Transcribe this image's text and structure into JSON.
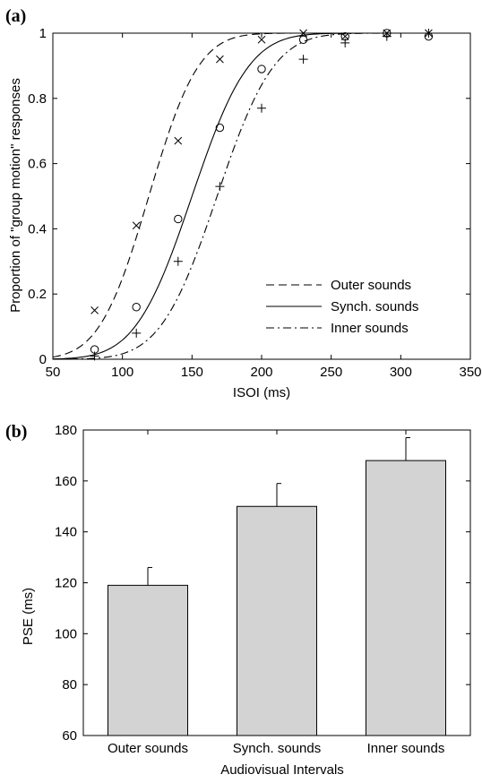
{
  "chart_data": [
    {
      "panel": "(a)",
      "type": "line",
      "xlabel": "ISOI (ms)",
      "ylabel": "Proportion of \"group motion\" responses",
      "xlim": [
        50,
        350
      ],
      "ylim": [
        0,
        1
      ],
      "xticks": [
        "50",
        "100",
        "150",
        "200",
        "250",
        "300",
        "350"
      ],
      "yticks": [
        "0",
        "0.2",
        "0.4",
        "0.6",
        "0.8",
        "1"
      ],
      "grid": false,
      "legend_position": "bottom-right",
      "series": [
        {
          "name": "Outer sounds",
          "line_style": "dashed",
          "marker": "x",
          "fit": {
            "mu": 119,
            "sigma": 28
          },
          "points": [
            [
              80,
              0.15
            ],
            [
              110,
              0.41
            ],
            [
              140,
              0.67
            ],
            [
              170,
              0.92
            ],
            [
              200,
              0.98
            ],
            [
              230,
              1.0
            ],
            [
              260,
              0.99
            ],
            [
              290,
              1.0
            ],
            [
              320,
              1.0
            ]
          ]
        },
        {
          "name": "Synch. sounds",
          "line_style": "solid",
          "marker": "o",
          "fit": {
            "mu": 150,
            "sigma": 32
          },
          "points": [
            [
              80,
              0.03
            ],
            [
              110,
              0.16
            ],
            [
              140,
              0.43
            ],
            [
              170,
              0.71
            ],
            [
              200,
              0.89
            ],
            [
              230,
              0.98
            ],
            [
              260,
              0.99
            ],
            [
              290,
              1.0
            ],
            [
              320,
              0.99
            ]
          ]
        },
        {
          "name": "Inner sounds",
          "line_style": "dashdot",
          "marker": "+",
          "fit": {
            "mu": 168,
            "sigma": 32
          },
          "points": [
            [
              80,
              0.01
            ],
            [
              110,
              0.08
            ],
            [
              140,
              0.3
            ],
            [
              170,
              0.53
            ],
            [
              200,
              0.77
            ],
            [
              230,
              0.92
            ],
            [
              260,
              0.97
            ],
            [
              290,
              0.99
            ],
            [
              320,
              1.0
            ]
          ]
        }
      ]
    },
    {
      "panel": "(b)",
      "type": "bar",
      "xlabel": "Audiovisual Intervals",
      "ylabel": "PSE (ms)",
      "ylim": [
        60,
        180
      ],
      "yticks": [
        "60",
        "80",
        "100",
        "120",
        "140",
        "160",
        "180"
      ],
      "categories": [
        "Outer sounds",
        "Synch. sounds",
        "Inner sounds"
      ],
      "values": [
        119,
        150,
        168
      ],
      "errors": [
        7,
        9,
        9
      ],
      "bar_color": "#d3d3d3",
      "grid": false
    }
  ]
}
